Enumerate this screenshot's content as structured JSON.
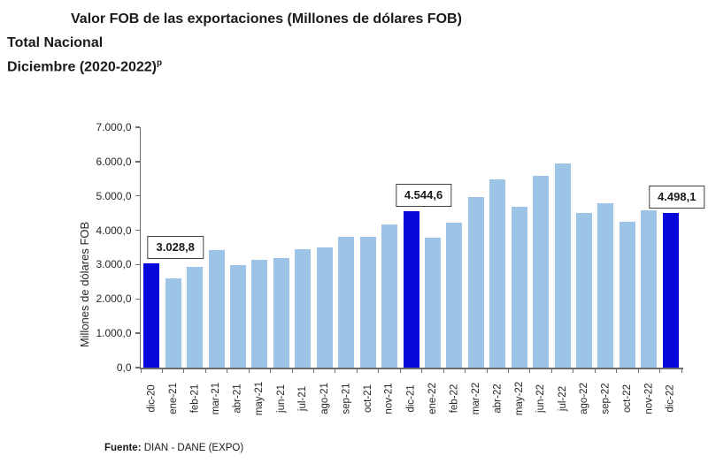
{
  "page": {
    "title": "Valor FOB de las exportaciones (Millones de dólares FOB)",
    "subtitle_national": "Total Nacional",
    "subtitle_period": "Diciembre (2020-2022)",
    "subtitle_period_sup": "p",
    "source_label": "Fuente:",
    "source_text": " DIAN - DANE (EXPO)"
  },
  "chart_data": {
    "type": "bar",
    "title": "Valor FOB de las exportaciones (Millones de dólares FOB)",
    "xlabel": "",
    "ylabel": "Millones de dólares FOB",
    "ylim": [
      0,
      7000
    ],
    "grid": false,
    "legend": "none",
    "y_tick_labels": [
      "0,0",
      "1.000,0",
      "2.000,0",
      "3.000,0",
      "4.000,0",
      "5.000,0",
      "6.000,0",
      "7.000,0"
    ],
    "categories": [
      "dic-20",
      "ene-21",
      "feb-21",
      "mar-21",
      "abr-21",
      "may-21",
      "jun-21",
      "jul-21",
      "ago-21",
      "sep-21",
      "oct-21",
      "nov-21",
      "dic-21",
      "ene-22",
      "feb-22",
      "mar-22",
      "abr-22",
      "may-22",
      "jun-22",
      "jul-22",
      "ago-22",
      "sep-22",
      "oct-22",
      "nov-22",
      "dic-22"
    ],
    "values": [
      3028.8,
      2610,
      2945,
      3430,
      2990,
      3130,
      3195,
      3450,
      3490,
      3820,
      3815,
      4165,
      4544.6,
      3780,
      4225,
      4960,
      5490,
      4685,
      5590,
      5940,
      4505,
      4790,
      4235,
      4570,
      4498.1
    ],
    "highlight_indices": [
      0,
      12,
      24
    ],
    "bar_color": "#9dc3e6",
    "highlight_color": "#0707da",
    "axis_color": "#6e6e6e",
    "data_labels": [
      {
        "index": 0,
        "text": "3.028,8",
        "dx": 27
      },
      {
        "index": 12,
        "text": "4.544,6",
        "dx": 14
      },
      {
        "index": 24,
        "text": "4.498,1",
        "dx": 7
      }
    ]
  }
}
